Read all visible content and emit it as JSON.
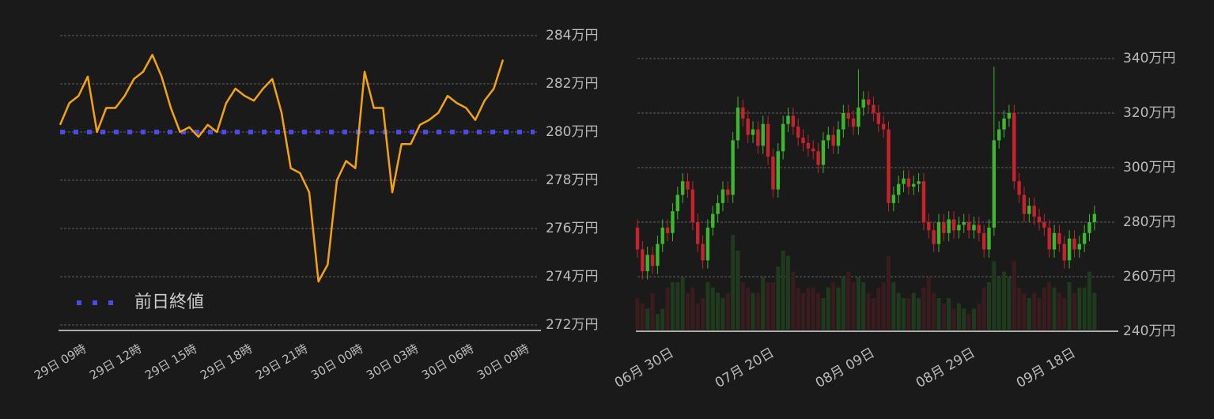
{
  "chart_data": [
    {
      "type": "line",
      "categories": [
        "29日 09時",
        null,
        null,
        null,
        null,
        null,
        "29日 12時",
        null,
        null,
        null,
        null,
        null,
        "29日 15時",
        null,
        null,
        null,
        null,
        null,
        "29日 18時",
        null,
        null,
        null,
        null,
        null,
        "29日 21時",
        null,
        null,
        null,
        null,
        null,
        "30日 00時",
        null,
        null,
        null,
        null,
        null,
        "30日 03時",
        null,
        null,
        null,
        null,
        null,
        "30日 06時",
        null,
        null,
        null,
        null,
        null,
        "30日 09時"
      ],
      "values": [
        280.3,
        281.2,
        281.5,
        282.3,
        280.0,
        281.0,
        281.0,
        281.5,
        282.2,
        282.5,
        283.2,
        282.3,
        281.0,
        280.0,
        280.2,
        279.8,
        280.3,
        280.0,
        281.2,
        281.8,
        281.5,
        281.3,
        281.8,
        282.2,
        280.8,
        278.5,
        278.3,
        277.5,
        273.8,
        274.5,
        278.0,
        278.8,
        278.5,
        282.5,
        281.0,
        281.0,
        277.5,
        279.5,
        279.5,
        280.3,
        280.5,
        280.8,
        281.5,
        281.2,
        281.0,
        280.5,
        281.3,
        281.8,
        283.0
      ],
      "color": "#f5a30a",
      "reference_line": {
        "name": "前日終値",
        "value": 280,
        "color": "#4a4ae8"
      },
      "legend": "lower left",
      "ylim": [
        271.77,
        284
      ],
      "yticks": [
        {
          "value": 272,
          "label": "272万円"
        },
        {
          "value": 274,
          "label": "274万円"
        },
        {
          "value": 276,
          "label": "276万円"
        },
        {
          "value": 278,
          "label": "278万円"
        },
        {
          "value": 280,
          "label": "280万円"
        },
        {
          "value": 282,
          "label": "282万円"
        },
        {
          "value": 284,
          "label": "284万円"
        }
      ],
      "grid": true
    },
    {
      "type": "candlestick",
      "categories": [
        null,
        null,
        null,
        null,
        null,
        null,
        null,
        "06月 30日",
        null,
        null,
        null,
        null,
        null,
        null,
        null,
        null,
        null,
        null,
        null,
        null,
        null,
        null,
        null,
        null,
        null,
        null,
        null,
        "07月 20日",
        null,
        null,
        null,
        null,
        null,
        null,
        null,
        null,
        null,
        null,
        null,
        null,
        null,
        null,
        null,
        null,
        null,
        null,
        null,
        "08月 09日",
        null,
        null,
        null,
        null,
        null,
        null,
        null,
        null,
        null,
        null,
        null,
        null,
        null,
        null,
        null,
        null,
        null,
        null,
        null,
        "08月 29日",
        null,
        null,
        null,
        null,
        null,
        null,
        null,
        null,
        null,
        null,
        null,
        null,
        null,
        null,
        null,
        null,
        null,
        null,
        null,
        "09月 18日",
        null,
        null,
        null,
        null
      ],
      "open": [
        278,
        270,
        262,
        268,
        264,
        272,
        278,
        276,
        284,
        290,
        295,
        292,
        280,
        272,
        266,
        278,
        283,
        287,
        292,
        290,
        310,
        322,
        318,
        312,
        314,
        308,
        316,
        304,
        292,
        306,
        316,
        319,
        315,
        311,
        309,
        307,
        306,
        301,
        310,
        312,
        308,
        314,
        320,
        318,
        315,
        322,
        325,
        323,
        320,
        316,
        314,
        287,
        290,
        294,
        296,
        293,
        294,
        295,
        280,
        277,
        272,
        280,
        276,
        281,
        277,
        279,
        280,
        277,
        279,
        276,
        270,
        278,
        310,
        314,
        318,
        320,
        295,
        290,
        283,
        286,
        282,
        280,
        278,
        270,
        276,
        272,
        266,
        274,
        270,
        272,
        276,
        280
      ],
      "high": [
        281,
        273,
        271,
        271,
        275,
        281,
        281,
        287,
        293,
        298,
        298,
        295,
        283,
        275,
        281,
        286,
        290,
        295,
        295,
        313,
        326,
        325,
        321,
        317,
        317,
        319,
        319,
        307,
        309,
        319,
        322,
        322,
        318,
        314,
        312,
        310,
        309,
        313,
        315,
        315,
        317,
        323,
        323,
        321,
        336,
        328,
        328,
        326,
        323,
        319,
        317,
        293,
        297,
        299,
        299,
        297,
        298,
        298,
        283,
        280,
        283,
        283,
        284,
        284,
        282,
        283,
        283,
        282,
        282,
        279,
        281,
        337,
        317,
        321,
        323,
        323,
        298,
        293,
        289,
        289,
        285,
        283,
        281,
        279,
        279,
        275,
        277,
        277,
        275,
        279,
        283,
        286
      ],
      "low": [
        267,
        259,
        259,
        261,
        261,
        269,
        273,
        273,
        281,
        287,
        289,
        277,
        269,
        263,
        263,
        275,
        280,
        284,
        287,
        287,
        307,
        315,
        309,
        309,
        305,
        305,
        301,
        289,
        289,
        303,
        313,
        312,
        308,
        306,
        304,
        303,
        298,
        298,
        307,
        305,
        305,
        311,
        315,
        312,
        312,
        319,
        320,
        317,
        313,
        311,
        284,
        284,
        287,
        291,
        290,
        290,
        291,
        277,
        274,
        269,
        269,
        273,
        273,
        274,
        274,
        276,
        274,
        274,
        273,
        267,
        267,
        275,
        307,
        311,
        315,
        292,
        287,
        280,
        280,
        279,
        277,
        275,
        267,
        267,
        269,
        263,
        263,
        267,
        267,
        269,
        273,
        277
      ],
      "close": [
        270,
        262,
        268,
        264,
        272,
        278,
        276,
        284,
        290,
        295,
        292,
        280,
        272,
        266,
        278,
        283,
        287,
        292,
        290,
        310,
        322,
        318,
        312,
        314,
        308,
        316,
        304,
        292,
        306,
        316,
        319,
        315,
        311,
        309,
        307,
        306,
        301,
        310,
        312,
        308,
        314,
        320,
        318,
        315,
        322,
        325,
        323,
        320,
        316,
        314,
        287,
        290,
        294,
        296,
        293,
        294,
        295,
        280,
        277,
        272,
        280,
        276,
        281,
        277,
        279,
        280,
        277,
        279,
        276,
        270,
        278,
        310,
        314,
        318,
        320,
        295,
        290,
        283,
        286,
        282,
        280,
        278,
        270,
        276,
        272,
        266,
        274,
        270,
        272,
        276,
        280,
        283
      ],
      "volume": [
        30,
        25,
        20,
        35,
        15,
        20,
        40,
        45,
        45,
        50,
        35,
        40,
        25,
        30,
        45,
        40,
        35,
        30,
        35,
        90,
        75,
        45,
        40,
        35,
        35,
        50,
        45,
        45,
        60,
        75,
        70,
        55,
        40,
        35,
        40,
        40,
        35,
        30,
        40,
        45,
        40,
        50,
        55,
        45,
        50,
        45,
        35,
        30,
        40,
        45,
        70,
        45,
        35,
        30,
        30,
        35,
        30,
        40,
        50,
        35,
        30,
        25,
        30,
        20,
        25,
        20,
        15,
        20,
        25,
        40,
        45,
        65,
        50,
        55,
        50,
        65,
        40,
        35,
        30,
        35,
        30,
        40,
        45,
        40,
        35,
        30,
        45,
        35,
        40,
        40,
        55,
        35
      ],
      "up_color": "#3cb82e",
      "down_color": "#c8232c",
      "volume_up_color": "#1f3a1c",
      "volume_down_color": "#3a1c1e",
      "ylim": [
        240,
        340
      ],
      "yticks": [
        {
          "value": 240,
          "label": "240万円"
        },
        {
          "value": 260,
          "label": "260万円"
        },
        {
          "value": 280,
          "label": "280万円"
        },
        {
          "value": 300,
          "label": "300万円"
        },
        {
          "value": 320,
          "label": "320万円"
        },
        {
          "value": 340,
          "label": "340万円"
        }
      ],
      "grid": true
    }
  ]
}
